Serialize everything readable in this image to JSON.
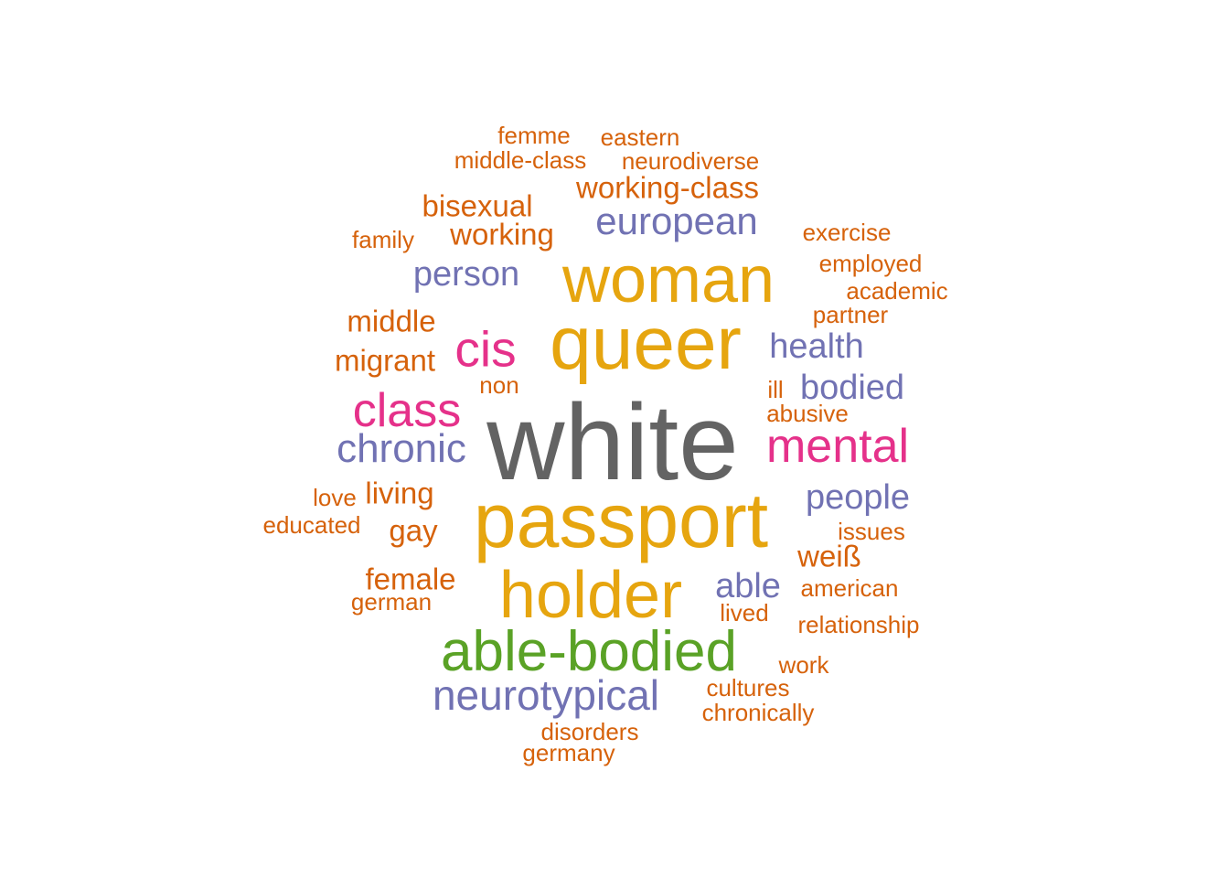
{
  "colors": {
    "gray": "#636363",
    "gold": "#e6a50f",
    "green": "#5aa226",
    "pink": "#e5318a",
    "purple": "#7172b3",
    "orange": "#d6620b"
  },
  "words": [
    {
      "text": "white",
      "color": "gray"
    },
    {
      "text": "passport",
      "color": "gold"
    },
    {
      "text": "queer",
      "color": "gold"
    },
    {
      "text": "woman",
      "color": "gold"
    },
    {
      "text": "holder",
      "color": "gold"
    },
    {
      "text": "able-bodied",
      "color": "green"
    },
    {
      "text": "mental",
      "color": "pink"
    },
    {
      "text": "class",
      "color": "pink"
    },
    {
      "text": "cis",
      "color": "pink"
    },
    {
      "text": "neurotypical",
      "color": "purple"
    },
    {
      "text": "chronic",
      "color": "purple"
    },
    {
      "text": "european",
      "color": "purple"
    },
    {
      "text": "person",
      "color": "purple"
    },
    {
      "text": "health",
      "color": "purple"
    },
    {
      "text": "bodied",
      "color": "purple"
    },
    {
      "text": "people",
      "color": "purple"
    },
    {
      "text": "able",
      "color": "purple"
    },
    {
      "text": "working-class",
      "color": "orange"
    },
    {
      "text": "bisexual",
      "color": "orange"
    },
    {
      "text": "working",
      "color": "orange"
    },
    {
      "text": "middle",
      "color": "orange"
    },
    {
      "text": "migrant",
      "color": "orange"
    },
    {
      "text": "living",
      "color": "orange"
    },
    {
      "text": "gay",
      "color": "orange"
    },
    {
      "text": "female",
      "color": "orange"
    },
    {
      "text": "weiß",
      "color": "orange"
    },
    {
      "text": "femme",
      "color": "orange"
    },
    {
      "text": "eastern",
      "color": "orange"
    },
    {
      "text": "middle-class",
      "color": "orange"
    },
    {
      "text": "neurodiverse",
      "color": "orange"
    },
    {
      "text": "family",
      "color": "orange"
    },
    {
      "text": "exercise",
      "color": "orange"
    },
    {
      "text": "employed",
      "color": "orange"
    },
    {
      "text": "academic",
      "color": "orange"
    },
    {
      "text": "partner",
      "color": "orange"
    },
    {
      "text": "non",
      "color": "orange"
    },
    {
      "text": "ill",
      "color": "orange"
    },
    {
      "text": "abusive",
      "color": "orange"
    },
    {
      "text": "love",
      "color": "orange"
    },
    {
      "text": "educated",
      "color": "orange"
    },
    {
      "text": "issues",
      "color": "orange"
    },
    {
      "text": "american",
      "color": "orange"
    },
    {
      "text": "german",
      "color": "orange"
    },
    {
      "text": "lived",
      "color": "orange"
    },
    {
      "text": "relationship",
      "color": "orange"
    },
    {
      "text": "work",
      "color": "orange"
    },
    {
      "text": "cultures",
      "color": "orange"
    },
    {
      "text": "chronically",
      "color": "orange"
    },
    {
      "text": "disorders",
      "color": "orange"
    },
    {
      "text": "germany",
      "color": "orange"
    }
  ]
}
